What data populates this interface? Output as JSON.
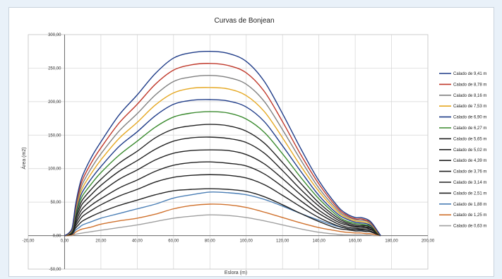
{
  "chart_data": {
    "type": "line",
    "title": "Curvas de Bonjean",
    "xlabel": "Eslora (m)",
    "ylabel": "Área (m2)",
    "xlim": [
      -20,
      200
    ],
    "ylim": [
      -50,
      300
    ],
    "x_ticks": [
      "-20,00",
      "0,00",
      "20,00",
      "40,00",
      "60,00",
      "80,00",
      "100,00",
      "120,00",
      "140,00",
      "160,00",
      "180,00",
      "200,00"
    ],
    "y_ticks": [
      "-50,00",
      "0,00",
      "50,00",
      "100,00",
      "150,00",
      "200,00",
      "250,00",
      "300,00"
    ],
    "grid": true,
    "legend_position": "right",
    "x": [
      0,
      2,
      4,
      5,
      6,
      8,
      10,
      15,
      20,
      30,
      40,
      50,
      60,
      70,
      80,
      90,
      100,
      110,
      120,
      130,
      140,
      150,
      155,
      160,
      163,
      166,
      168,
      170,
      172,
      174
    ],
    "series": [
      {
        "name": "Calado de 9,41 m",
        "color": "#1f3c88",
        "values": [
          0,
          3,
          10,
          25,
          45,
          72,
          90,
          118,
          140,
          180,
          210,
          242,
          265,
          273,
          275,
          272,
          260,
          230,
          182,
          130,
          82,
          45,
          33,
          27,
          27,
          25,
          22,
          16,
          8,
          0
        ]
      },
      {
        "name": "Calado de 8,78 m",
        "color": "#c0392b",
        "values": [
          0,
          3,
          9,
          23,
          42,
          67,
          84,
          110,
          131,
          168,
          196,
          226,
          247,
          255,
          257,
          254,
          243,
          215,
          170,
          121,
          77,
          42,
          31,
          25,
          25,
          23,
          21,
          15,
          7,
          0
        ]
      },
      {
        "name": "Calado de 8,16 m",
        "color": "#808080",
        "values": [
          0,
          3,
          9,
          22,
          39,
          62,
          78,
          102,
          122,
          156,
          182,
          210,
          230,
          237,
          239,
          236,
          226,
          200,
          158,
          113,
          71,
          39,
          29,
          24,
          23,
          22,
          19,
          14,
          7,
          0
        ]
      },
      {
        "name": "Calado de 7,53 m",
        "color": "#e5a823",
        "values": [
          0,
          2,
          8,
          20,
          36,
          57,
          72,
          94,
          113,
          145,
          169,
          195,
          213,
          220,
          221,
          219,
          209,
          185,
          146,
          104,
          66,
          36,
          27,
          22,
          21,
          20,
          18,
          13,
          6,
          0
        ]
      },
      {
        "name": "Calado de 6,90 m",
        "color": "#1f3c88",
        "values": [
          0,
          2,
          7,
          18,
          33,
          52,
          66,
          86,
          103,
          133,
          155,
          179,
          196,
          202,
          203,
          201,
          192,
          170,
          134,
          96,
          60,
          33,
          25,
          20,
          19,
          18,
          16,
          12,
          6,
          0
        ]
      },
      {
        "name": "Calado de 6,27 m",
        "color": "#3a8a2e",
        "values": [
          0,
          2,
          6,
          16,
          30,
          47,
          60,
          78,
          94,
          120,
          141,
          162,
          177,
          183,
          185,
          183,
          174,
          154,
          122,
          87,
          55,
          30,
          22,
          18,
          17,
          16,
          15,
          11,
          5,
          0
        ]
      },
      {
        "name": "Calado de 5,65 m",
        "color": "#222222",
        "values": [
          0,
          2,
          6,
          14,
          27,
          42,
          54,
          70,
          84,
          108,
          126,
          146,
          159,
          164,
          166,
          164,
          156,
          138,
          109,
          78,
          49,
          27,
          20,
          16,
          15,
          15,
          13,
          10,
          5,
          0
        ]
      },
      {
        "name": "Calado de 5,02 m",
        "color": "#222222",
        "values": [
          0,
          1,
          5,
          13,
          24,
          37,
          48,
          62,
          75,
          96,
          112,
          129,
          141,
          146,
          147,
          145,
          139,
          123,
          97,
          69,
          44,
          24,
          18,
          14,
          14,
          13,
          12,
          9,
          4,
          0
        ]
      },
      {
        "name": "Calado de 4,39 m",
        "color": "#222222",
        "values": [
          0,
          1,
          4,
          11,
          20,
          32,
          41,
          54,
          65,
          84,
          98,
          113,
          123,
          127,
          128,
          127,
          121,
          107,
          85,
          61,
          38,
          21,
          16,
          13,
          12,
          12,
          10,
          8,
          4,
          0
        ]
      },
      {
        "name": "Calado de 3,76 m",
        "color": "#222222",
        "values": [
          0,
          1,
          4,
          9,
          17,
          27,
          35,
          46,
          55,
          71,
          83,
          96,
          105,
          109,
          110,
          108,
          104,
          92,
          73,
          52,
          33,
          18,
          13,
          11,
          10,
          10,
          9,
          7,
          3,
          0
        ]
      },
      {
        "name": "Calado de 3,14 m",
        "color": "#222222",
        "values": [
          0,
          1,
          3,
          8,
          14,
          22,
          29,
          38,
          46,
          59,
          69,
          80,
          87,
          90,
          91,
          90,
          86,
          76,
          60,
          43,
          27,
          15,
          11,
          9,
          9,
          8,
          7,
          5,
          3,
          0
        ]
      },
      {
        "name": "Calado de 2,51 m",
        "color": "#222222",
        "values": [
          0,
          1,
          2,
          6,
          11,
          17,
          22,
          29,
          35,
          45,
          53,
          61,
          67,
          69,
          70,
          69,
          66,
          58,
          46,
          33,
          21,
          11,
          9,
          7,
          7,
          6,
          6,
          4,
          2,
          0
        ]
      },
      {
        "name": "Calado de 1,88 m",
        "color": "#4a7eb5",
        "values": [
          0,
          1,
          2,
          4,
          8,
          12,
          16,
          21,
          26,
          33,
          40,
          47,
          56,
          61,
          65,
          64,
          61,
          54,
          44,
          33,
          23,
          14,
          11,
          9,
          8,
          8,
          7,
          5,
          3,
          0
        ]
      },
      {
        "name": "Calado de 1,25 m",
        "color": "#d0722e",
        "values": [
          0,
          0,
          1,
          2,
          5,
          8,
          10,
          13,
          17,
          22,
          26,
          32,
          40,
          45,
          47,
          46,
          42,
          35,
          27,
          19,
          12,
          7,
          5,
          4,
          4,
          3,
          3,
          2,
          1,
          0
        ]
      },
      {
        "name": "Calado de 0,63 m",
        "color": "#a0a0a0",
        "values": [
          0,
          0,
          0,
          1,
          2,
          3,
          4,
          6,
          8,
          12,
          16,
          21,
          26,
          29,
          31,
          30,
          27,
          22,
          16,
          10,
          5,
          2,
          1,
          1,
          1,
          1,
          1,
          0,
          0,
          0
        ]
      }
    ]
  }
}
